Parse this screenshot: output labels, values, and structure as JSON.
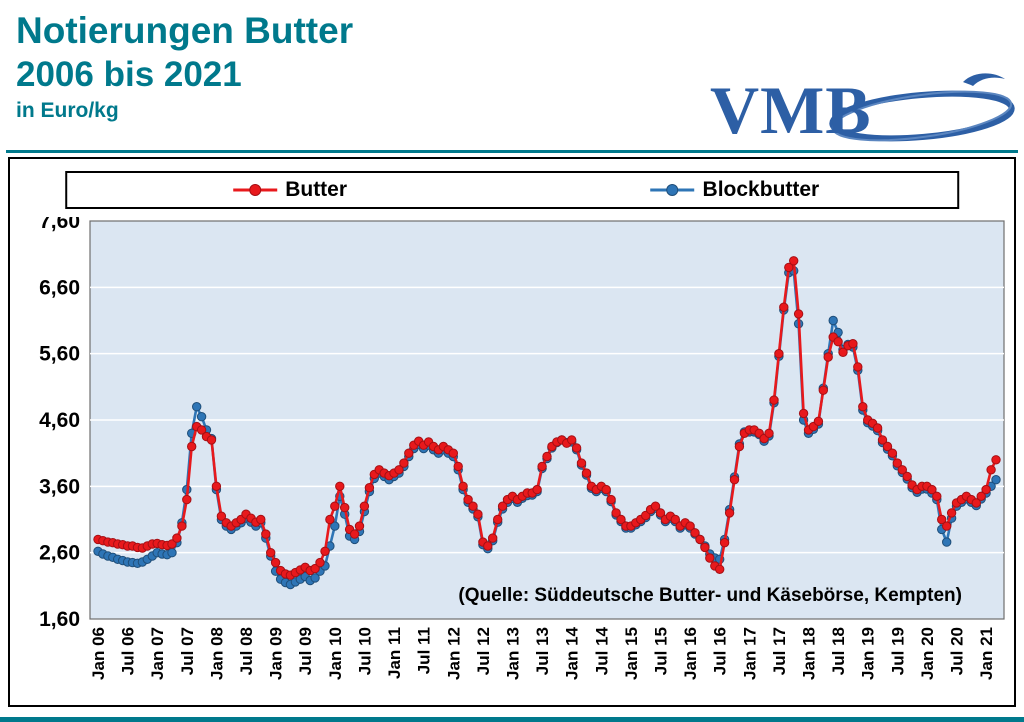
{
  "header": {
    "title_line1": "Notierungen Butter",
    "title_line2": "2006 bis 2021",
    "unit": "in Euro/kg",
    "logo_text": "VMB"
  },
  "theme": {
    "accent_teal": "#00798c",
    "logo_blue": "#2d5fa5",
    "plot_background": "#dbe6f2",
    "grid_color": "#ffffff"
  },
  "chart_data": {
    "type": "line",
    "title": "Notierungen Butter 2006 bis 2021",
    "ylabel": "Euro/kg",
    "ylim": [
      1.6,
      7.6
    ],
    "ytick_labels": [
      "1,60",
      "2,60",
      "3,60",
      "4,60",
      "5,60",
      "6,60",
      "7,60"
    ],
    "x_description": "monthly values Jan 2006 - Mar 2021",
    "x_tick_every": 6,
    "x_tick_labels": [
      "Jan 06",
      "Jul 06",
      "Jan 07",
      "Jul 07",
      "Jan 08",
      "Jul 08",
      "Jan 09",
      "Jul 09",
      "Jan 10",
      "Jul 10",
      "Jan 11",
      "Jul 11",
      "Jan 12",
      "Jul 12",
      "Jan 13",
      "Jul 13",
      "Jan 14",
      "Jul 14",
      "Jan 15",
      "Jul 15",
      "Jan 16",
      "Jul 16",
      "Jan 17",
      "Jul 17",
      "Jan 18",
      "Jul 18",
      "Jan 19",
      "Jul 19",
      "Jan 20",
      "Jul 20",
      "Jan 21"
    ],
    "annotation": "(Quelle: Süddeutsche Butter- und Käsebörse, Kempten)",
    "legend_position": "top",
    "grid": true,
    "series": [
      {
        "name": "Butter",
        "color": "#e8191c",
        "edge": "#a50f14",
        "values": [
          2.8,
          2.78,
          2.76,
          2.75,
          2.73,
          2.72,
          2.7,
          2.7,
          2.68,
          2.67,
          2.7,
          2.73,
          2.74,
          2.72,
          2.71,
          2.73,
          2.82,
          3.0,
          3.4,
          4.2,
          4.5,
          4.45,
          4.35,
          4.3,
          3.6,
          3.15,
          3.05,
          3.0,
          3.05,
          3.1,
          3.18,
          3.12,
          3.06,
          3.1,
          2.88,
          2.6,
          2.45,
          2.33,
          2.28,
          2.26,
          2.3,
          2.34,
          2.38,
          2.33,
          2.36,
          2.45,
          2.62,
          3.1,
          3.3,
          3.6,
          3.28,
          2.95,
          2.88,
          3.0,
          3.3,
          3.58,
          3.78,
          3.85,
          3.8,
          3.76,
          3.8,
          3.85,
          3.95,
          4.1,
          4.22,
          4.28,
          4.22,
          4.27,
          4.2,
          4.15,
          4.2,
          4.15,
          4.1,
          3.9,
          3.6,
          3.4,
          3.3,
          3.18,
          2.76,
          2.7,
          2.82,
          3.1,
          3.3,
          3.4,
          3.45,
          3.4,
          3.45,
          3.5,
          3.5,
          3.55,
          3.9,
          4.05,
          4.2,
          4.27,
          4.3,
          4.25,
          4.3,
          4.18,
          3.95,
          3.8,
          3.6,
          3.55,
          3.6,
          3.55,
          3.4,
          3.2,
          3.1,
          3.0,
          3.0,
          3.05,
          3.1,
          3.16,
          3.25,
          3.3,
          3.2,
          3.1,
          3.15,
          3.1,
          3.0,
          3.05,
          3.0,
          2.9,
          2.8,
          2.68,
          2.52,
          2.4,
          2.35,
          2.75,
          3.2,
          3.7,
          4.2,
          4.4,
          4.45,
          4.45,
          4.4,
          4.32,
          4.4,
          4.9,
          5.6,
          6.3,
          6.9,
          7.0,
          6.2,
          4.7,
          4.45,
          4.5,
          4.58,
          5.05,
          5.55,
          5.85,
          5.78,
          5.62,
          5.72,
          5.75,
          5.4,
          4.8,
          4.6,
          4.55,
          4.48,
          4.3,
          4.2,
          4.1,
          3.95,
          3.85,
          3.75,
          3.62,
          3.55,
          3.6,
          3.6,
          3.55,
          3.45,
          3.1,
          3.0,
          3.2,
          3.35,
          3.4,
          3.45,
          3.4,
          3.35,
          3.45,
          3.55,
          3.85,
          4.0
        ]
      },
      {
        "name": "Blockbutter",
        "color": "#2e75b6",
        "edge": "#1f4e79",
        "values": [
          2.62,
          2.58,
          2.55,
          2.53,
          2.5,
          2.48,
          2.46,
          2.45,
          2.44,
          2.46,
          2.5,
          2.55,
          2.6,
          2.58,
          2.57,
          2.6,
          2.75,
          3.05,
          3.55,
          4.4,
          4.8,
          4.65,
          4.45,
          4.32,
          3.55,
          3.1,
          3.0,
          2.95,
          3.0,
          3.05,
          3.12,
          3.06,
          3.0,
          3.05,
          2.82,
          2.55,
          2.32,
          2.2,
          2.15,
          2.12,
          2.16,
          2.2,
          2.24,
          2.18,
          2.22,
          2.32,
          2.4,
          2.7,
          3.0,
          3.45,
          3.18,
          2.85,
          2.8,
          2.92,
          3.22,
          3.52,
          3.72,
          3.8,
          3.75,
          3.7,
          3.75,
          3.8,
          3.9,
          4.05,
          4.17,
          4.23,
          4.17,
          4.22,
          4.15,
          4.1,
          4.15,
          4.1,
          4.05,
          3.85,
          3.55,
          3.36,
          3.26,
          3.14,
          2.72,
          2.66,
          2.78,
          3.06,
          3.26,
          3.36,
          3.42,
          3.36,
          3.42,
          3.46,
          3.47,
          3.52,
          3.87,
          4.02,
          4.18,
          4.26,
          4.3,
          4.26,
          4.27,
          4.15,
          3.92,
          3.77,
          3.57,
          3.52,
          3.57,
          3.52,
          3.37,
          3.17,
          3.07,
          2.97,
          2.97,
          3.02,
          3.07,
          3.13,
          3.22,
          3.27,
          3.17,
          3.07,
          3.12,
          3.07,
          2.97,
          3.02,
          2.97,
          2.88,
          2.8,
          2.7,
          2.58,
          2.52,
          2.5,
          2.8,
          3.25,
          3.74,
          4.24,
          4.42,
          4.42,
          4.42,
          4.38,
          4.28,
          4.36,
          4.86,
          5.56,
          6.26,
          6.82,
          6.85,
          6.05,
          4.6,
          4.4,
          4.46,
          4.54,
          5.08,
          5.6,
          6.1,
          5.92,
          5.66,
          5.74,
          5.7,
          5.35,
          4.75,
          4.56,
          4.51,
          4.44,
          4.26,
          4.16,
          4.06,
          3.91,
          3.81,
          3.71,
          3.58,
          3.51,
          3.56,
          3.56,
          3.5,
          3.4,
          2.95,
          2.76,
          3.12,
          3.3,
          3.36,
          3.41,
          3.36,
          3.31,
          3.41,
          3.5,
          3.6,
          3.7
        ]
      }
    ]
  }
}
